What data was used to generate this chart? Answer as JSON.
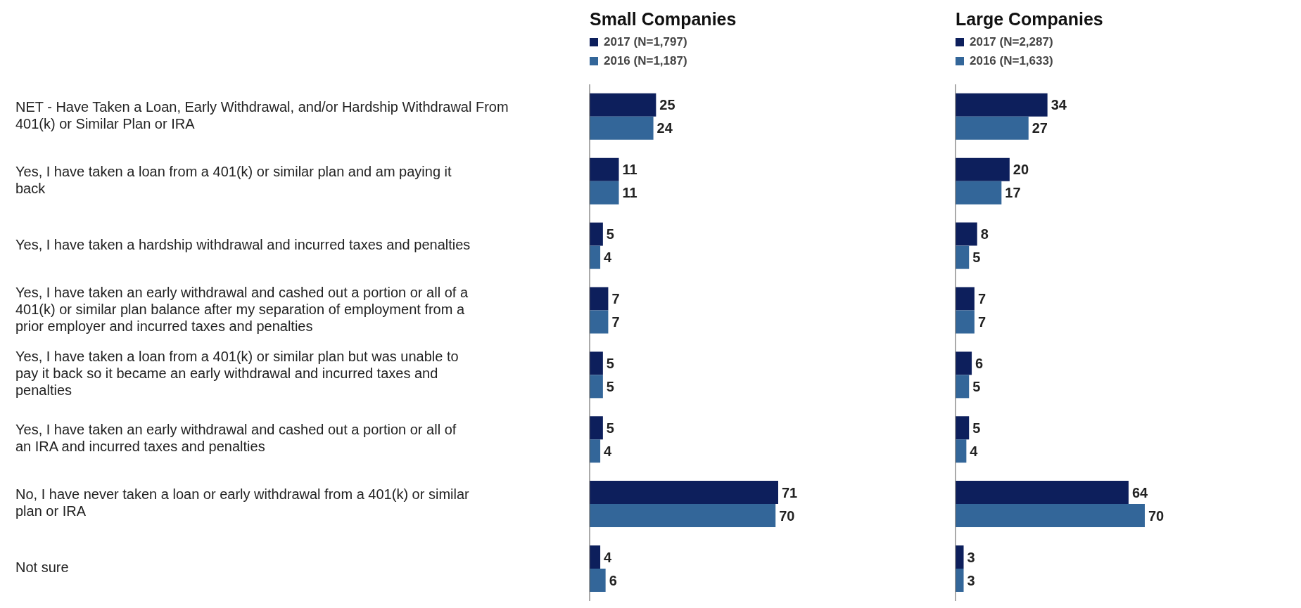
{
  "chart_data": [
    {
      "type": "bar",
      "orientation": "horizontal",
      "title": "Small Companies",
      "categories": [
        "NET - Have Taken a Loan, Early Withdrawal, and/or Hardship Withdrawal From 401(k) or Similar Plan or IRA",
        "Yes, I have taken a loan from a 401(k) or similar plan and am paying it back",
        "Yes, I have taken a hardship withdrawal and incurred taxes and penalties",
        "Yes, I have taken an early withdrawal and cashed out a portion or all of a 401(k) or similar plan balance after my separation of employment from a prior employer and incurred taxes and penalties",
        "Yes, I have taken a loan from a 401(k) or similar plan but was unable to pay it back so it became an early withdrawal and incurred taxes and penalties",
        "Yes, I have taken an early withdrawal and cashed out a portion or all of an IRA and incurred taxes and penalties",
        "No, I have never taken a loan or early withdrawal from a 401(k) or similar plan or IRA",
        "Not sure"
      ],
      "series": [
        {
          "name": "2017 (N=1,797)",
          "color": "#0d1f5c",
          "values": [
            25,
            11,
            5,
            7,
            5,
            5,
            71,
            4
          ]
        },
        {
          "name": "2016 (N=1,187)",
          "color": "#336699",
          "values": [
            24,
            11,
            4,
            7,
            5,
            4,
            70,
            6
          ]
        }
      ],
      "data_labels": true,
      "legend": "top left",
      "tick_labels": "y"
    },
    {
      "type": "bar",
      "orientation": "horizontal",
      "title": "Large Companies",
      "categories": [
        null,
        null,
        null,
        null,
        null,
        null,
        null,
        null
      ],
      "series": [
        {
          "name": "2017 (N=2,287)",
          "color": "#0d1f5c",
          "values": [
            34,
            20,
            8,
            7,
            6,
            5,
            64,
            3
          ]
        },
        {
          "name": "2016 (N=1,633)",
          "color": "#336699",
          "values": [
            27,
            17,
            5,
            7,
            5,
            4,
            70,
            3
          ]
        }
      ],
      "data_labels": true,
      "legend": "top left",
      "tick_labels": false
    }
  ]
}
